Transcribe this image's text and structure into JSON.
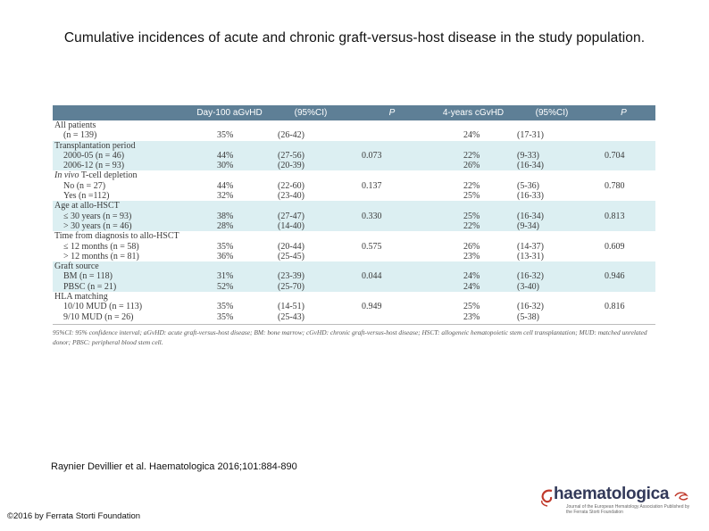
{
  "title": "Cumulative incidences of acute and chronic graft-versus-host disease in the study population.",
  "table": {
    "headers": [
      "",
      "Day-100 aGvHD",
      "(95%CI)",
      "P",
      "4-years cGvHD",
      "(95%CI)",
      "P"
    ],
    "rows": [
      {
        "label": "All patients",
        "cells": [
          "",
          "",
          "",
          "",
          "",
          ""
        ],
        "indent": false,
        "band": "white"
      },
      {
        "label": "(n = 139)",
        "cells": [
          "35%",
          "(26-42)",
          "",
          "24%",
          "(17-31)",
          ""
        ],
        "indent": true,
        "band": "white"
      },
      {
        "label": "Transplantation period",
        "cells": [
          "",
          "",
          "",
          "",
          "",
          ""
        ],
        "indent": false,
        "band": "blue"
      },
      {
        "label": "2000-05 (n = 46)",
        "cells": [
          "44%",
          "(27-56)",
          "0.073",
          "22%",
          "(9-33)",
          "0.704"
        ],
        "indent": true,
        "band": "blue"
      },
      {
        "label": "2006-12 (n = 93)",
        "cells": [
          "30%",
          "(20-39)",
          "",
          "26%",
          "(16-34)",
          ""
        ],
        "indent": true,
        "band": "blue"
      },
      {
        "label": "In vivo T-cell depletion",
        "cells": [
          "",
          "",
          "",
          "",
          "",
          ""
        ],
        "indent": false,
        "band": "white",
        "italic_prefix": "In vivo"
      },
      {
        "label": "No (n = 27)",
        "cells": [
          "44%",
          "(22-60)",
          "0.137",
          "22%",
          "(5-36)",
          "0.780"
        ],
        "indent": true,
        "band": "white"
      },
      {
        "label": "Yes (n =112)",
        "cells": [
          "32%",
          "(23-40)",
          "",
          "25%",
          "(16-33)",
          ""
        ],
        "indent": true,
        "band": "white"
      },
      {
        "label": "Age at allo-HSCT",
        "cells": [
          "",
          "",
          "",
          "",
          "",
          ""
        ],
        "indent": false,
        "band": "blue"
      },
      {
        "label": "≤ 30 years (n = 93)",
        "cells": [
          "38%",
          "(27-47)",
          "0.330",
          "25%",
          "(16-34)",
          "0.813"
        ],
        "indent": true,
        "band": "blue"
      },
      {
        "label": "> 30 years (n = 46)",
        "cells": [
          "28%",
          "(14-40)",
          "",
          "22%",
          "(9-34)",
          ""
        ],
        "indent": true,
        "band": "blue"
      },
      {
        "label": "Time from diagnosis to allo-HSCT",
        "cells": [
          "",
          "",
          "",
          "",
          "",
          ""
        ],
        "indent": false,
        "band": "white"
      },
      {
        "label": "≤ 12 months (n = 58)",
        "cells": [
          "35%",
          "(20-44)",
          "0.575",
          "26%",
          "(14-37)",
          "0.609"
        ],
        "indent": true,
        "band": "white"
      },
      {
        "label": "> 12 months (n = 81)",
        "cells": [
          "36%",
          "(25-45)",
          "",
          "23%",
          "(13-31)",
          ""
        ],
        "indent": true,
        "band": "white"
      },
      {
        "label": "Graft source",
        "cells": [
          "",
          "",
          "",
          "",
          "",
          ""
        ],
        "indent": false,
        "band": "blue"
      },
      {
        "label": "BM (n = 118)",
        "cells": [
          "31%",
          "(23-39)",
          "0.044",
          "24%",
          "(16-32)",
          "0.946"
        ],
        "indent": true,
        "band": "blue"
      },
      {
        "label": "PBSC (n = 21)",
        "cells": [
          "52%",
          "(25-70)",
          "",
          "24%",
          "(3-40)",
          ""
        ],
        "indent": true,
        "band": "blue"
      },
      {
        "label": "HLA matching",
        "cells": [
          "",
          "",
          "",
          "",
          "",
          ""
        ],
        "indent": false,
        "band": "white"
      },
      {
        "label": "10/10 MUD (n = 113)",
        "cells": [
          "35%",
          "(14-51)",
          "0.949",
          "25%",
          "(16-32)",
          "0.816"
        ],
        "indent": true,
        "band": "white"
      },
      {
        "label": "9/10 MUD (n = 26)",
        "cells": [
          "35%",
          "(25-43)",
          "",
          "23%",
          "(5-38)",
          ""
        ],
        "indent": true,
        "band": "white"
      }
    ],
    "footnote": "95%CI: 95% confidence interval; aGvHD: acute graft-versus-host disease; BM: bone marrow; cGvHD: chronic graft-versus-host disease; HSCT: allogeneic hematopoietic stem cell transplantation; MUD: matched unrelated donor; PBSC: peripheral blood stem cell."
  },
  "citation": "Raynier Devillier et al. Haematologica 2016;101:884-890",
  "copyright": "©2016 by Ferrata Storti Foundation",
  "logo": {
    "name": "haematologica",
    "subtitle": "Journal of the European Hematology Association Published by the Ferrata Storti Foundation"
  },
  "colors": {
    "header_bg": "#5e7f96",
    "band_blue": "#dceff2"
  }
}
